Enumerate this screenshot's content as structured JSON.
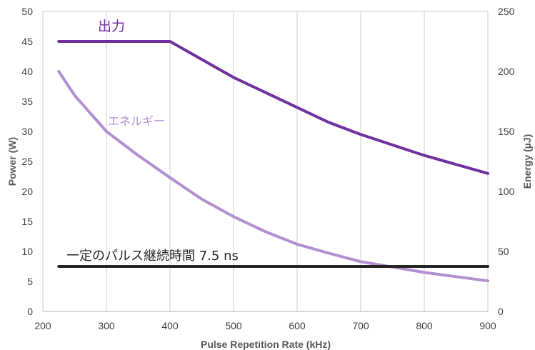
{
  "chart_data": {
    "type": "line",
    "xlabel": "Pulse Repetition Rate (kHz)",
    "ylabel_left": "Power (W)",
    "ylabel_right": "Energy (µJ)",
    "x_ticks": [
      200,
      300,
      400,
      500,
      600,
      700,
      800,
      900
    ],
    "y_left_ticks": [
      0,
      5,
      10,
      15,
      20,
      25,
      30,
      35,
      40,
      45,
      50
    ],
    "y_right_ticks": [
      0,
      50,
      100,
      150,
      200,
      250
    ],
    "xlim": [
      200,
      900
    ],
    "ylim_left": [
      0,
      50
    ],
    "ylim_right": [
      0,
      250
    ],
    "grid": "vertical",
    "series": [
      {
        "name": "出力",
        "axis": "left",
        "color": "#7030A0",
        "points": [
          [
            225,
            45
          ],
          [
            300,
            45
          ],
          [
            400,
            45
          ],
          [
            450,
            42
          ],
          [
            500,
            39
          ],
          [
            600,
            34
          ],
          [
            650,
            31.5
          ],
          [
            700,
            29.5
          ],
          [
            800,
            26
          ],
          [
            900,
            23
          ]
        ]
      },
      {
        "name": "エネルギー",
        "axis": "left",
        "color": "#B18FD1",
        "points": [
          [
            225,
            40
          ],
          [
            250,
            36
          ],
          [
            300,
            30
          ],
          [
            350,
            26
          ],
          [
            400,
            22.3
          ],
          [
            450,
            18.7
          ],
          [
            500,
            15.8
          ],
          [
            550,
            13.3
          ],
          [
            600,
            11.2
          ],
          [
            650,
            9.7
          ],
          [
            700,
            8.3
          ],
          [
            750,
            7.4
          ],
          [
            800,
            6.5
          ],
          [
            850,
            5.8
          ],
          [
            900,
            5.1
          ]
        ]
      },
      {
        "name": "一定のパルス継続時間 7.5 ns",
        "axis": "left",
        "color": "#262626",
        "points": [
          [
            225,
            7.5
          ],
          [
            900,
            7.5
          ]
        ]
      }
    ]
  }
}
